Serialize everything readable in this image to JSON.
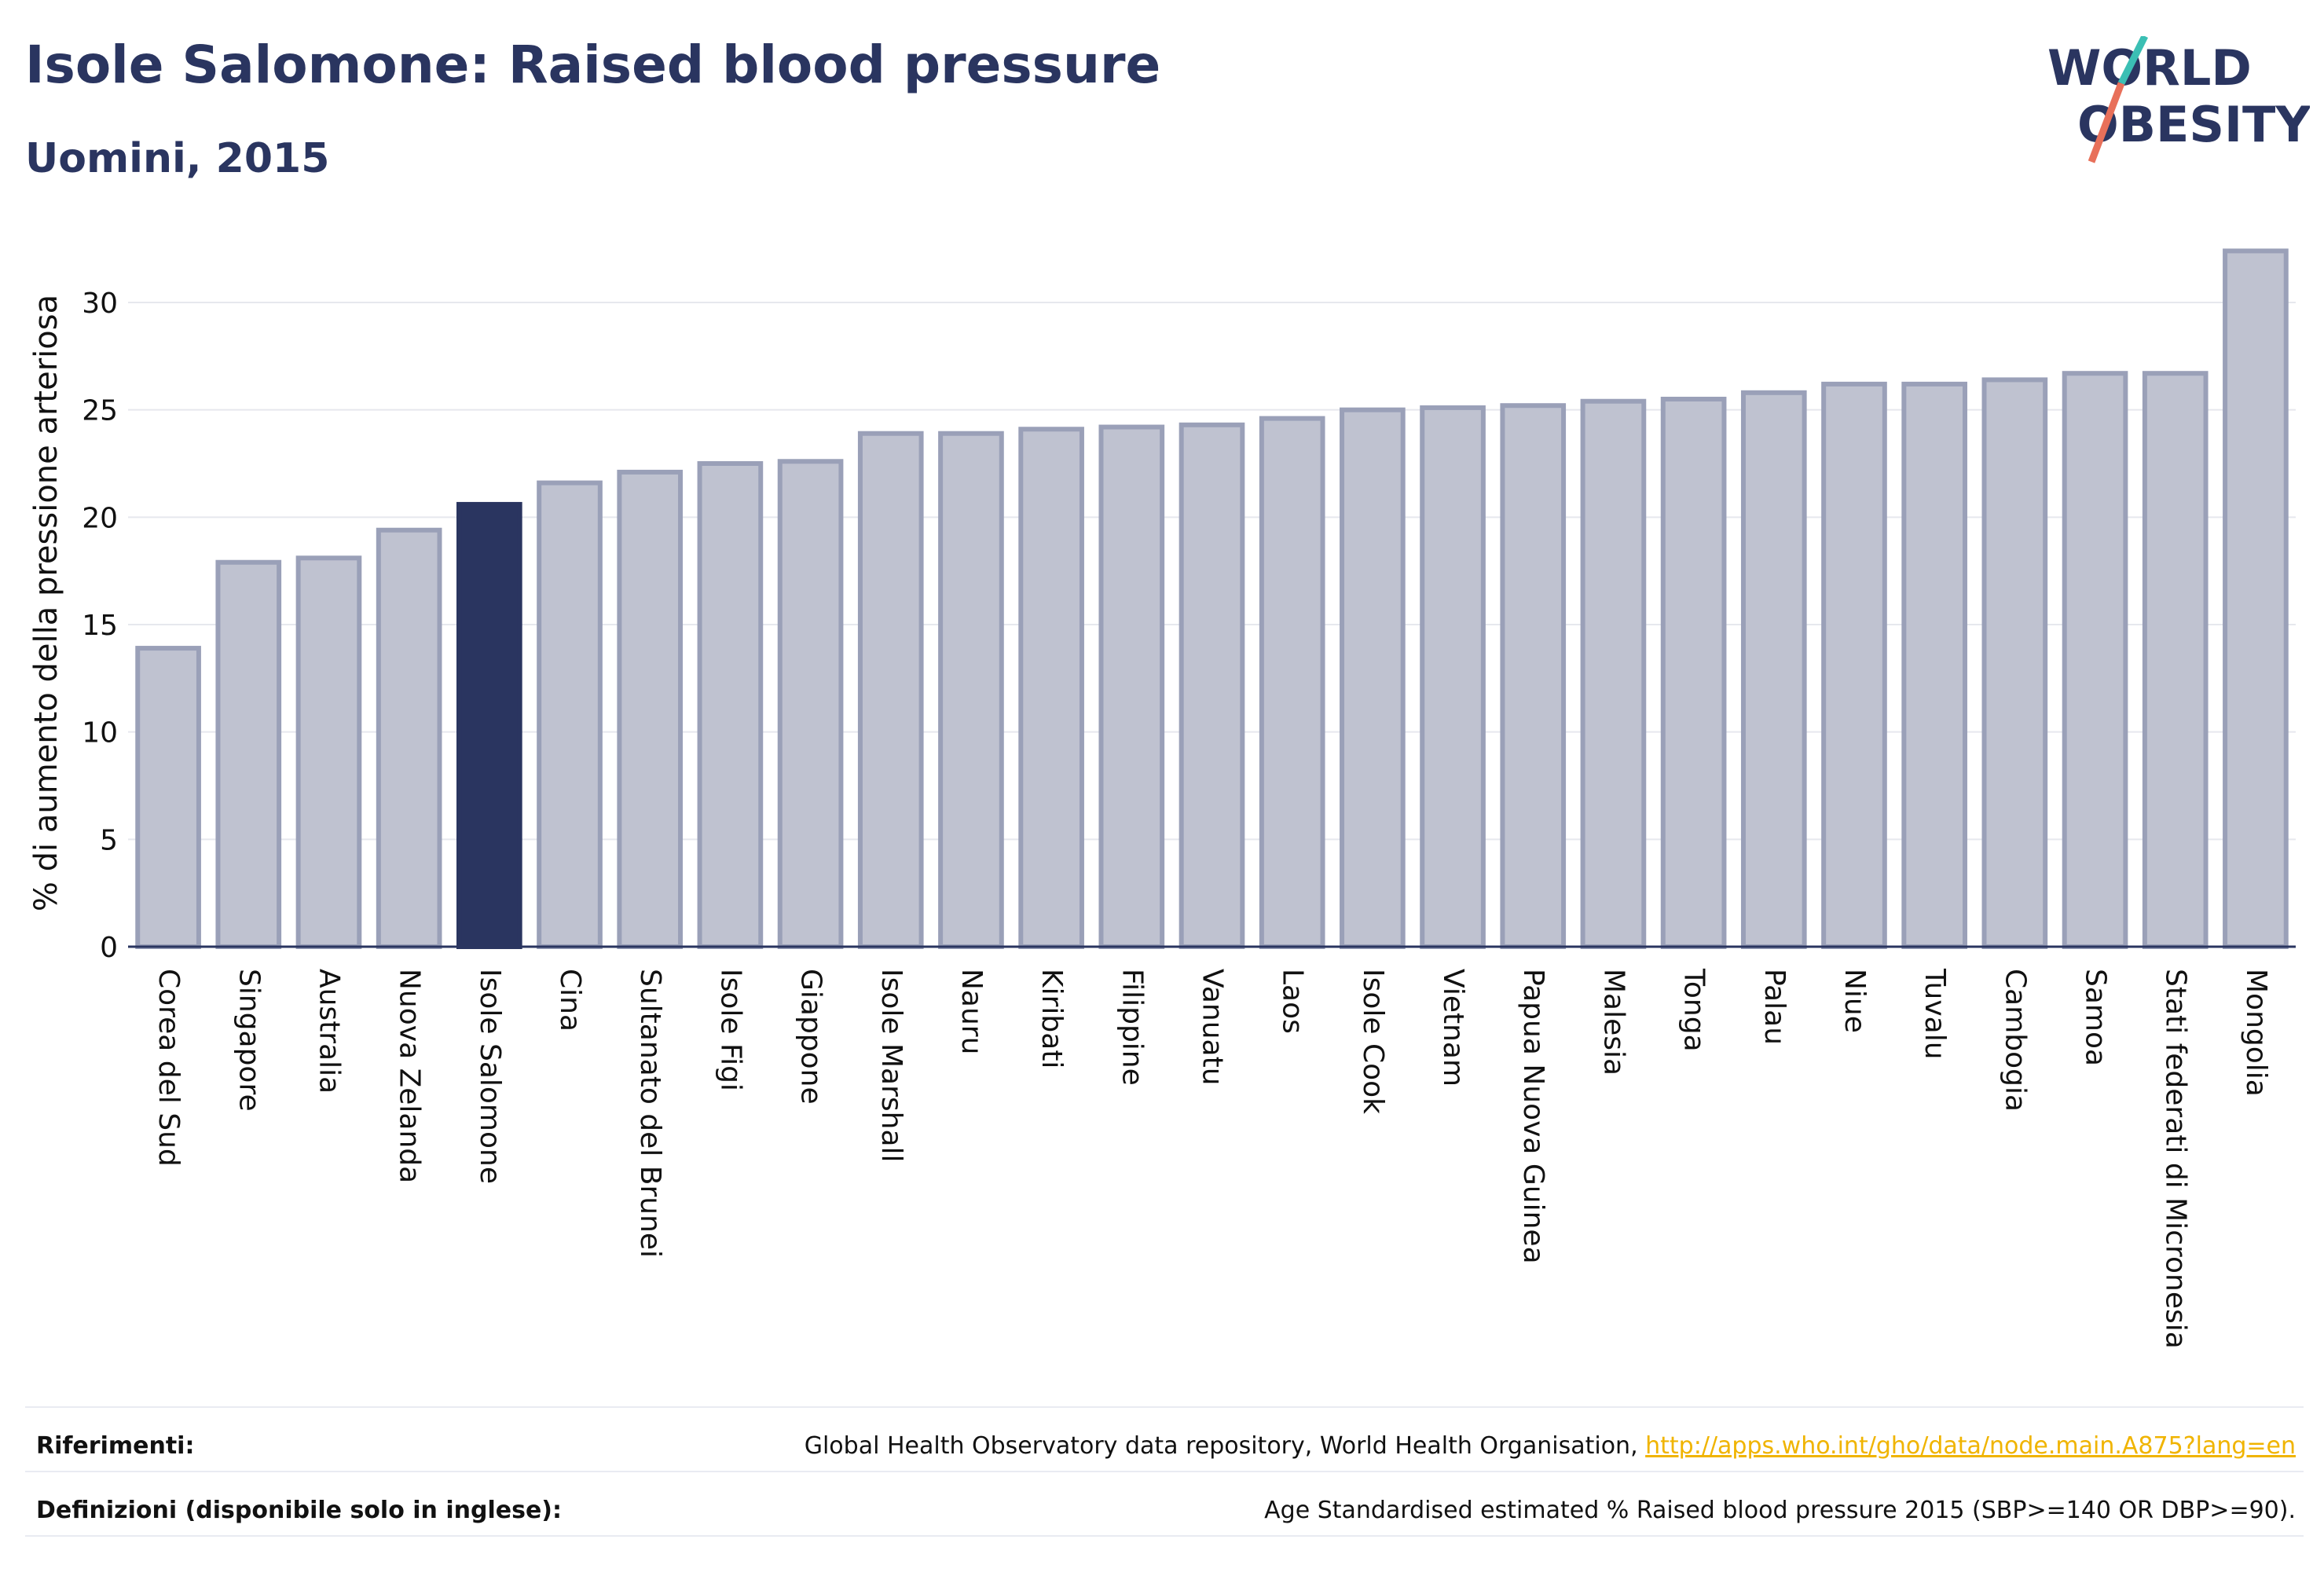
{
  "header": {
    "title": "Isole Salomone: Raised blood pressure",
    "subtitle": "Uomini, 2015"
  },
  "logo": {
    "line1": "WORLD",
    "line2": "OBESITY"
  },
  "colors": {
    "highlight": "#2a3560",
    "bar_fill": "#bfc2d0",
    "bar_stroke": "#9aa0b8",
    "grid": "#e6e8ee",
    "axis": "#2a3560",
    "logo_teal": "#3bbfb4",
    "logo_coral": "#e8705a"
  },
  "chart_data": {
    "type": "bar",
    "title": "Isole Salomone: Raised blood pressure",
    "subtitle": "Uomini, 2015",
    "ylabel": "% di aumento della pressione arteriosa",
    "xlabel": "",
    "ylim": [
      0,
      33
    ],
    "yticks": [
      0,
      5,
      10,
      15,
      20,
      25,
      30
    ],
    "grid": true,
    "highlight": "Isole Salomone",
    "categories": [
      "Corea del Sud",
      "Singapore",
      "Australia",
      "Nuova Zelanda",
      "Isole Salomone",
      "Cina",
      "Sultanato del Brunei",
      "Isole Figi",
      "Giappone",
      "Isole Marshall",
      "Nauru",
      "Kiribati",
      "Filippine",
      "Vanuatu",
      "Laos",
      "Isole Cook",
      "Vietnam",
      "Papua Nuova Guinea",
      "Malesia",
      "Tonga",
      "Palau",
      "Niue",
      "Tuvalu",
      "Cambogia",
      "Samoa",
      "Stati federati di Micronesia",
      "Mongolia"
    ],
    "values": [
      13.9,
      17.9,
      18.1,
      19.4,
      20.6,
      21.6,
      22.1,
      22.5,
      22.6,
      23.9,
      23.9,
      24.1,
      24.2,
      24.3,
      24.6,
      25.0,
      25.1,
      25.2,
      25.4,
      25.5,
      25.8,
      26.2,
      26.2,
      26.4,
      26.7,
      26.7,
      32.4
    ]
  },
  "footer": {
    "references_label": "Riferimenti:",
    "references_text": "Global Health Observatory data repository, World Health Organisation, ",
    "references_link": "http://apps.who.int/gho/data/node.main.A875?lang=en",
    "definitions_label": "Definizioni (disponibile solo in inglese):",
    "definitions_text": "Age Standardised estimated % Raised blood pressure 2015 (SBP>=140 OR DBP>=90)."
  }
}
